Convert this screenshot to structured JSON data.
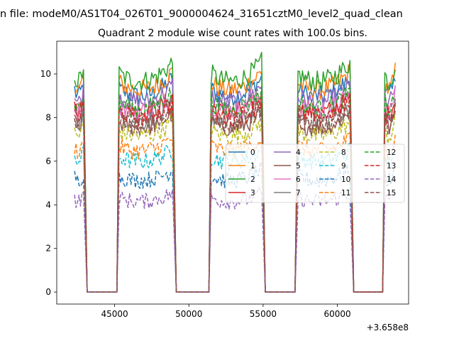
{
  "figure": {
    "suptitle": "n file: modeM0/AS1T04_026T01_9000004624_31651cztM0_level2_quad_clean",
    "offset_label": "+3.658e8"
  },
  "chart_data": {
    "type": "line",
    "title": "Quadrant 2 module wise count rates with 100.0s bins.",
    "xlabel": "",
    "ylabel": "",
    "x_offset": 365800000,
    "xlim": [
      41100,
      64800
    ],
    "ylim": [
      -0.55,
      11.5
    ],
    "xticks": [
      45000,
      50000,
      55000,
      60000
    ],
    "yticks": [
      0,
      2,
      4,
      6,
      8,
      10
    ],
    "grid": false,
    "legend_placement": "center-right",
    "bin_width_s": 100,
    "on_segments": [
      {
        "start": 42300,
        "end": 42950,
        "drop_to": 43150
      },
      {
        "start": 45300,
        "end": 48950,
        "rise_from": 45150,
        "drop_to": 49150
      },
      {
        "start": 51500,
        "end": 54950,
        "rise_from": 51350,
        "drop_to": 55150
      },
      {
        "start": 57350,
        "end": 60900,
        "rise_from": 57150,
        "drop_to": 61100
      },
      {
        "start": 63200,
        "end": 63900,
        "rise_from": 63050
      }
    ],
    "series": [
      {
        "name": "0",
        "color": "#1f77b4",
        "dash": "solid",
        "level": 9.3
      },
      {
        "name": "1",
        "color": "#ff7f0e",
        "dash": "solid",
        "level": 9.6
      },
      {
        "name": "2",
        "color": "#2ca02c",
        "dash": "solid",
        "level": 10.0
      },
      {
        "name": "3",
        "color": "#d62728",
        "dash": "solid",
        "level": 8.5
      },
      {
        "name": "4",
        "color": "#9467bd",
        "dash": "solid",
        "level": 9.0
      },
      {
        "name": "5",
        "color": "#8c564b",
        "dash": "solid",
        "level": 7.8
      },
      {
        "name": "6",
        "color": "#e377c2",
        "dash": "solid",
        "level": 8.6
      },
      {
        "name": "7",
        "color": "#7f7f7f",
        "dash": "solid",
        "level": 8.1
      },
      {
        "name": "8",
        "color": "#bcbd22",
        "dash": "dashed",
        "level": 7.4
      },
      {
        "name": "9",
        "color": "#17becf",
        "dash": "dashed",
        "level": 6.2
      },
      {
        "name": "10",
        "color": "#1f77b4",
        "dash": "dashed",
        "level": 5.3
      },
      {
        "name": "11",
        "color": "#ff7f0e",
        "dash": "dashed",
        "level": 6.7
      },
      {
        "name": "12",
        "color": "#2ca02c",
        "dash": "dashed",
        "level": 8.7
      },
      {
        "name": "13",
        "color": "#d62728",
        "dash": "dashed",
        "level": 8.3
      },
      {
        "name": "14",
        "color": "#9467bd",
        "dash": "dashed",
        "level": 4.3
      },
      {
        "name": "15",
        "color": "#8c564b",
        "dash": "dashed",
        "level": 7.9
      }
    ]
  }
}
